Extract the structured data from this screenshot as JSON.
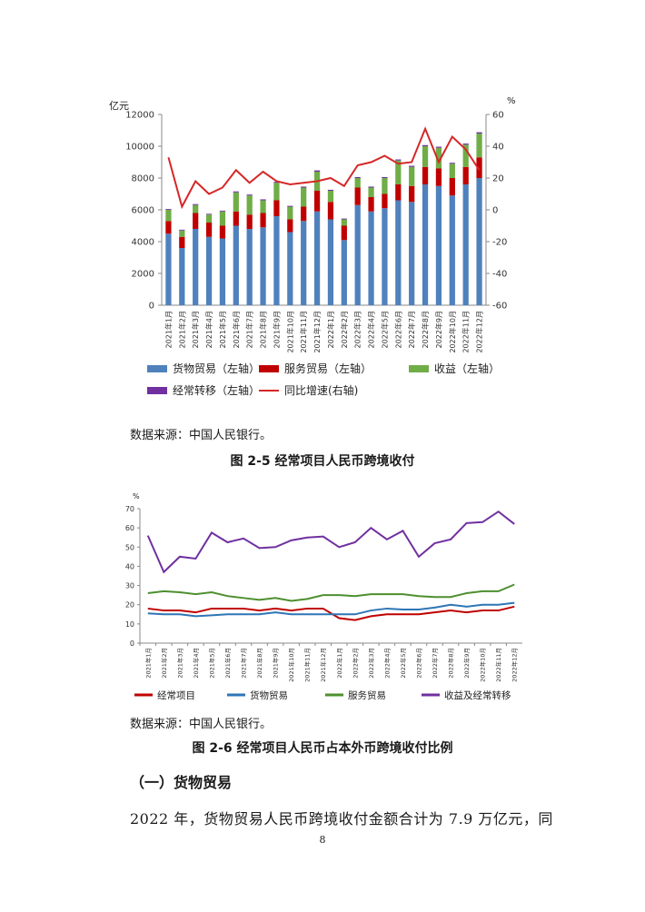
{
  "chart_data": [
    {
      "type": "bar",
      "stacked": true,
      "categories": [
        "2021年1月",
        "2021年2月",
        "2021年3月",
        "2021年4月",
        "2021年5月",
        "2021年6月",
        "2021年7月",
        "2021年8月",
        "2021年9月",
        "2021年10月",
        "2021年11月",
        "2021年12月",
        "2022年1月",
        "2022年2月",
        "2022年3月",
        "2022年4月",
        "2022年5月",
        "2022年6月",
        "2022年7月",
        "2022年8月",
        "2022年9月",
        "2022年10月",
        "2022年11月",
        "2022年12月"
      ],
      "left_unit": "亿元",
      "right_unit": "%",
      "left_ylim": [
        0,
        12000
      ],
      "left_ticks": [
        0,
        2000,
        4000,
        6000,
        8000,
        10000,
        12000
      ],
      "right_ylim": [
        -60,
        60
      ],
      "right_ticks": [
        -60,
        -40,
        -20,
        0,
        20,
        40,
        60
      ],
      "series": [
        {
          "name": "货物贸易（左轴）",
          "color": "#4f81bd",
          "values": [
            4500,
            3600,
            4800,
            4300,
            4200,
            5000,
            4800,
            4900,
            5600,
            4600,
            5300,
            5900,
            5400,
            4100,
            6300,
            5900,
            6100,
            6600,
            6500,
            7600,
            7500,
            6900,
            7600,
            8000
          ]
        },
        {
          "name": "服务贸易（左轴）",
          "color": "#c00000",
          "values": [
            800,
            700,
            1000,
            900,
            800,
            900,
            900,
            900,
            1000,
            800,
            900,
            1300,
            1100,
            900,
            1100,
            900,
            900,
            1000,
            1000,
            1100,
            1100,
            1100,
            1100,
            1300
          ]
        },
        {
          "name": "收益（左轴）",
          "color": "#70ad47",
          "values": [
            700,
            400,
            500,
            500,
            900,
            1200,
            1200,
            800,
            1100,
            800,
            1200,
            1200,
            700,
            400,
            600,
            600,
            1000,
            1500,
            1200,
            1300,
            1300,
            900,
            1400,
            1500
          ]
        },
        {
          "name": "经常转移（左轴）",
          "color": "#7030a0",
          "values": [
            50,
            50,
            60,
            50,
            50,
            60,
            60,
            60,
            60,
            50,
            60,
            80,
            60,
            50,
            60,
            60,
            60,
            70,
            70,
            70,
            70,
            60,
            70,
            80
          ]
        }
      ],
      "line_series": {
        "name": "同比增速(右轴)",
        "color": "#d62728",
        "axis": "right",
        "values": [
          33,
          2,
          18,
          10,
          14,
          25,
          17,
          24,
          18,
          16,
          17,
          18,
          20,
          15,
          28,
          30,
          34,
          29,
          30,
          51,
          30,
          46,
          38,
          25
        ]
      }
    },
    {
      "type": "line",
      "categories": [
        "2021年1月",
        "2021年2月",
        "2021年3月",
        "2021年4月",
        "2021年5月",
        "2021年6月",
        "2021年7月",
        "2021年8月",
        "2021年9月",
        "2021年10月",
        "2021年11月",
        "2021年12月",
        "2022年1月",
        "2022年2月",
        "2022年3月",
        "2022年4月",
        "2022年5月",
        "2022年6月",
        "2022年7月",
        "2022年8月",
        "2022年9月",
        "2022年10月",
        "2022年11月",
        "2022年12月"
      ],
      "y_unit": "%",
      "ylim": [
        0,
        70
      ],
      "yticks": [
        0,
        10,
        20,
        30,
        40,
        50,
        60,
        70
      ],
      "series": [
        {
          "name": "经常项目",
          "color": "#c00000",
          "values": [
            18,
            17,
            17,
            16,
            18,
            18,
            18,
            17,
            18,
            17,
            18,
            18,
            13,
            12,
            14,
            15,
            15,
            15,
            16,
            17,
            16,
            17,
            17,
            19
          ]
        },
        {
          "name": "货物贸易",
          "color": "#2e75b6",
          "values": [
            15.5,
            15,
            15,
            14,
            14.5,
            15,
            15,
            15,
            16,
            15,
            15,
            15,
            15,
            15,
            17,
            18,
            17.5,
            17.5,
            18.5,
            20,
            19,
            20,
            20,
            21
          ]
        },
        {
          "name": "服务贸易",
          "color": "#4e8f2f",
          "values": [
            26,
            27,
            26.5,
            25.5,
            26.5,
            24.5,
            23.5,
            22.5,
            23.5,
            22,
            23,
            25,
            25,
            24.5,
            25.5,
            25.5,
            25.5,
            24.5,
            24,
            24,
            26,
            27,
            27,
            30.5
          ]
        },
        {
          "name": "收益及经常转移",
          "color": "#7030a0",
          "values": [
            56,
            37,
            45,
            44,
            57.5,
            52.5,
            54.5,
            49.5,
            50,
            53.5,
            55,
            55.5,
            50,
            52.5,
            60,
            54,
            58.5,
            45,
            52,
            54,
            62.5,
            63,
            68.5,
            62
          ]
        }
      ]
    }
  ],
  "chart1_source": "数据来源：中国人民银行。",
  "chart1_caption": "图 2-5 经常项目人民币跨境收付",
  "chart2_source": "数据来源：中国人民银行。",
  "chart2_caption": "图 2-6 经常项目人民币占本外币跨境收付比例",
  "section_heading": "（一）货物贸易",
  "body_text": "2022 年，货物贸易人民币跨境收付金额合计为 7.9 万亿元，同",
  "page_number": "8"
}
